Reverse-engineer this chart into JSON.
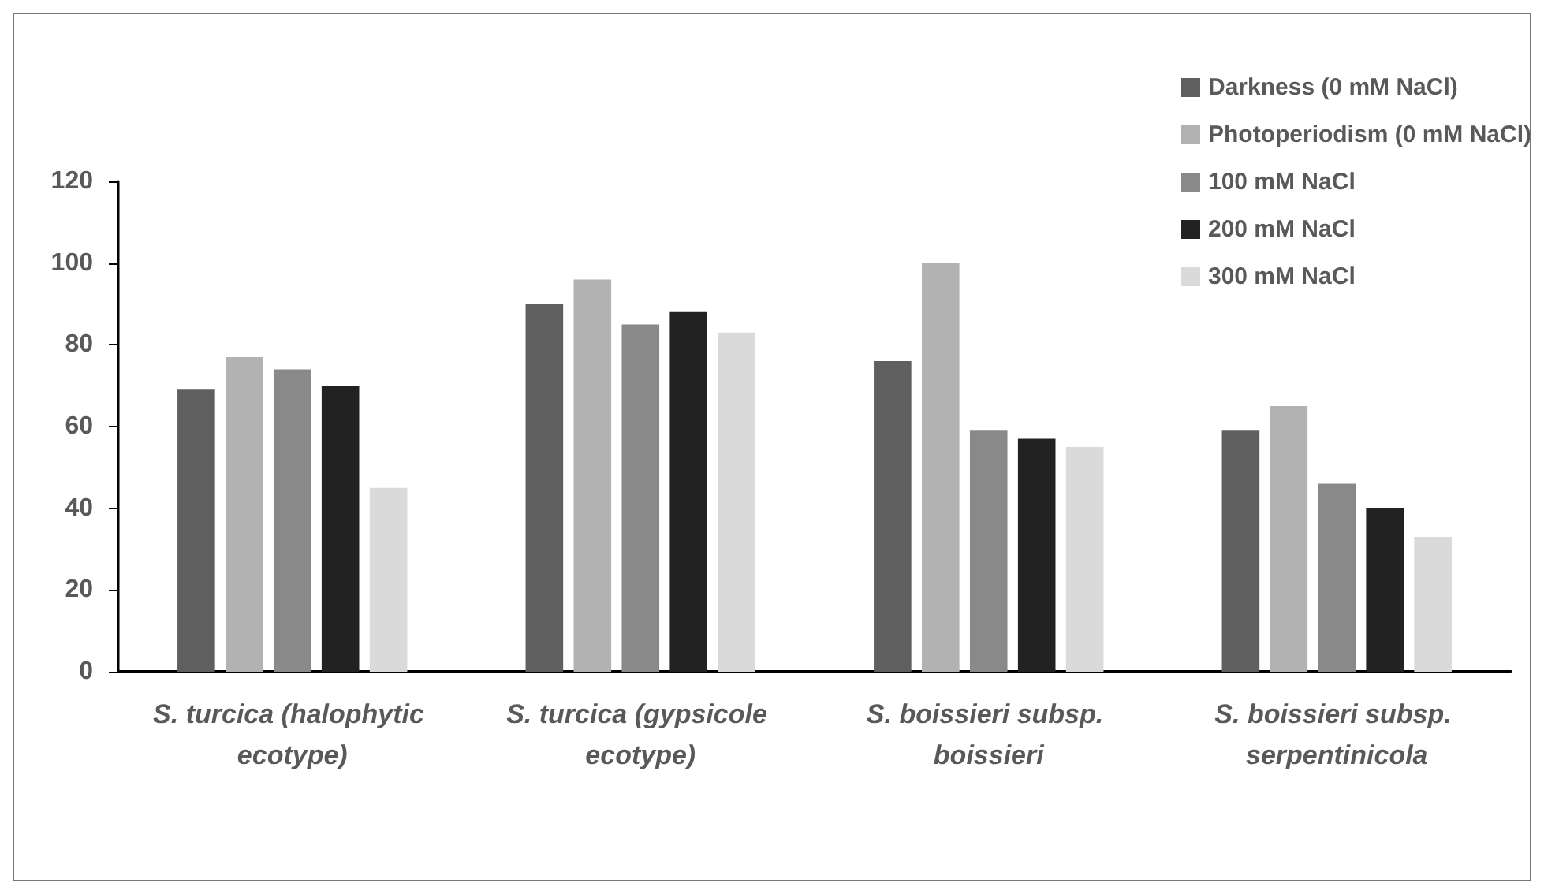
{
  "chart_data": {
    "type": "bar",
    "categories": [
      "S. turcica (halophytic ecotype)",
      "S. turcica (gypsicole ecotype)",
      "S. boissieri subsp. boissieri",
      "S. boissieri subsp. serpentinicola"
    ],
    "series": [
      {
        "name": "Darkness (0 mM NaCl)",
        "color": "#5f5f5f",
        "values": [
          69,
          90,
          76,
          59
        ]
      },
      {
        "name": "Photoperiodism (0 mM NaCl)",
        "color": "#b2b2b2",
        "values": [
          77,
          96,
          100,
          65
        ]
      },
      {
        "name": "100 mM NaCl",
        "color": "#898989",
        "values": [
          74,
          85,
          59,
          46
        ]
      },
      {
        "name": "200 mM NaCl",
        "color": "#222222",
        "values": [
          70,
          88,
          57,
          40
        ]
      },
      {
        "name": "300 mM NaCl",
        "color": "#dadada",
        "values": [
          45,
          83,
          55,
          33
        ]
      }
    ],
    "ylim": [
      0,
      120
    ],
    "yticks": [
      0,
      20,
      40,
      60,
      80,
      100,
      120
    ],
    "grid": false,
    "legend": "top right"
  }
}
